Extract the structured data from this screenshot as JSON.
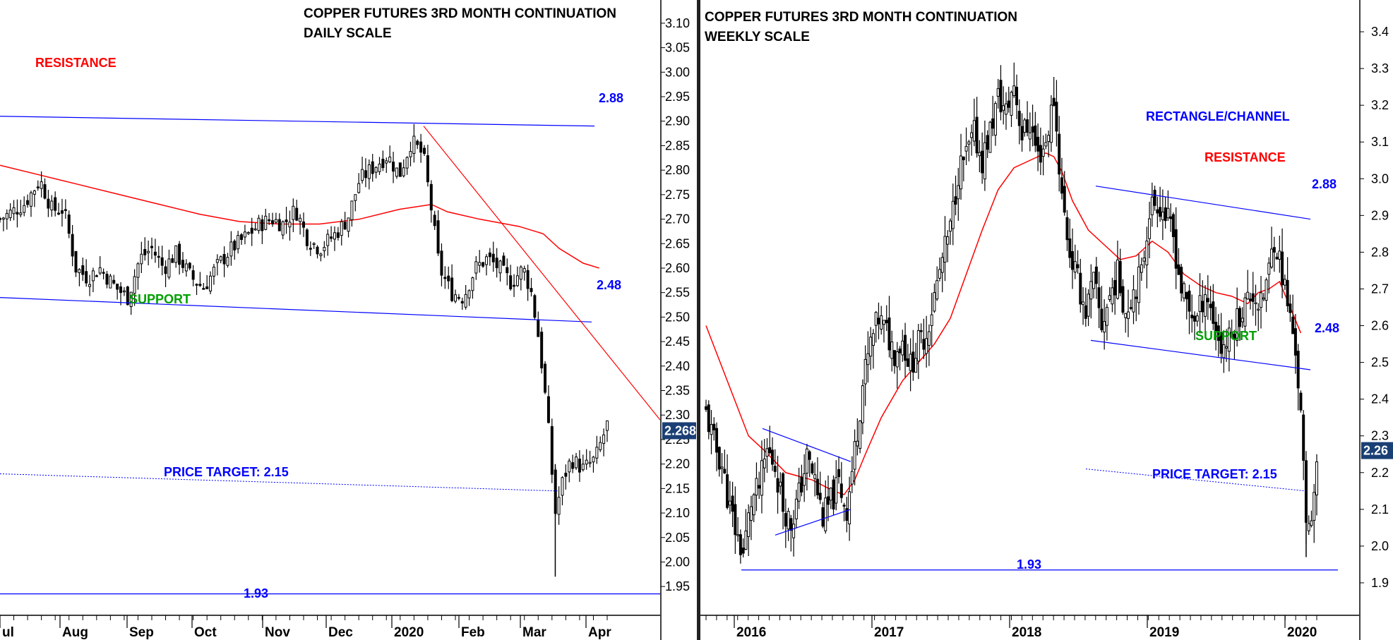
{
  "chart_data": [
    {
      "type": "candlestick",
      "title_line1": "COPPER FUTURES 3RD MONTH CONTINUATION",
      "title_line2": "DAILY SCALE",
      "x_tick_labels": [
        "ul",
        "Aug",
        "Sep",
        "Oct",
        "Nov",
        "Dec",
        "2020",
        "Feb",
        "Mar",
        "Apr"
      ],
      "y_tick_labels": [
        "3.10",
        "3.05",
        "3.00",
        "2.95",
        "2.90",
        "2.85",
        "2.80",
        "2.75",
        "2.70",
        "2.65",
        "2.60",
        "2.55",
        "2.50",
        "2.45",
        "2.40",
        "2.35",
        "2.30",
        "2.25",
        "2.20",
        "2.15",
        "2.10",
        "2.05",
        "2.00",
        "1.95"
      ],
      "ylim": [
        1.92,
        3.12
      ],
      "last_price_label": "2.268",
      "last_price": 2.268,
      "annotations": {
        "resistance_label": "RESISTANCE",
        "resistance_value": "2.88",
        "support_label": "SUPPORT",
        "support_value": "2.48",
        "target_label": "PRICE TARGET: 2.15",
        "low_value": "1.93"
      },
      "levels": {
        "resistance_start": 2.91,
        "resistance_end": 2.89,
        "support_start": 2.54,
        "support_end": 2.49,
        "target_start": 2.18,
        "target_end": 2.145,
        "low": 1.935
      },
      "downtrend_line": {
        "start": 2.89,
        "end": 2.29
      },
      "colors": {
        "resistance": "#ff0000",
        "support": "#00a000",
        "lines": "#0000ff",
        "moving_average": "#ff0000",
        "candles": "#000000"
      },
      "close_path": [
        [
          0,
          2.7
        ],
        [
          6,
          2.73
        ],
        [
          10,
          2.78
        ],
        [
          13,
          2.72
        ],
        [
          16,
          2.72
        ],
        [
          19,
          2.6
        ],
        [
          22,
          2.58
        ],
        [
          25,
          2.6
        ],
        [
          29,
          2.56
        ],
        [
          32,
          2.54
        ],
        [
          35,
          2.62
        ],
        [
          38,
          2.64
        ],
        [
          41,
          2.6
        ],
        [
          44,
          2.63
        ],
        [
          48,
          2.58
        ],
        [
          51,
          2.56
        ],
        [
          54,
          2.6
        ],
        [
          58,
          2.64
        ],
        [
          61,
          2.66
        ],
        [
          65,
          2.69
        ],
        [
          68,
          2.7
        ],
        [
          71,
          2.69
        ],
        [
          74,
          2.72
        ],
        [
          77,
          2.66
        ],
        [
          80,
          2.64
        ],
        [
          84,
          2.67
        ],
        [
          87,
          2.7
        ],
        [
          90,
          2.78
        ],
        [
          94,
          2.81
        ],
        [
          97,
          2.83
        ],
        [
          100,
          2.79
        ],
        [
          103,
          2.86
        ],
        [
          106,
          2.83
        ],
        [
          108,
          2.72
        ],
        [
          110,
          2.6
        ],
        [
          113,
          2.55
        ],
        [
          116,
          2.54
        ],
        [
          119,
          2.6
        ],
        [
          122,
          2.62
        ],
        [
          125,
          2.6
        ],
        [
          128,
          2.57
        ],
        [
          131,
          2.6
        ],
        [
          133,
          2.55
        ],
        [
          135,
          2.45
        ],
        [
          137,
          2.3
        ],
        [
          139,
          2.1
        ],
        [
          141,
          2.17
        ],
        [
          143,
          2.21
        ],
        [
          146,
          2.19
        ],
        [
          149,
          2.21
        ],
        [
          152,
          2.28
        ]
      ],
      "moving_average": [
        [
          0,
          2.81
        ],
        [
          10,
          2.79
        ],
        [
          20,
          2.77
        ],
        [
          30,
          2.75
        ],
        [
          40,
          2.73
        ],
        [
          50,
          2.71
        ],
        [
          60,
          2.695
        ],
        [
          70,
          2.69
        ],
        [
          80,
          2.69
        ],
        [
          90,
          2.7
        ],
        [
          100,
          2.72
        ],
        [
          108,
          2.73
        ],
        [
          112,
          2.715
        ],
        [
          120,
          2.7
        ],
        [
          130,
          2.685
        ],
        [
          136,
          2.67
        ],
        [
          140,
          2.64
        ],
        [
          146,
          2.61
        ],
        [
          150,
          2.6
        ]
      ]
    },
    {
      "type": "candlestick",
      "title_line1": "COPPER FUTURES 3RD MONTH CONTINUATION",
      "title_line2": "WEEKLY SCALE",
      "x_tick_labels": [
        "2016",
        "2017",
        "2018",
        "2019",
        "2020"
      ],
      "y_tick_labels": [
        "3.4",
        "3.3",
        "3.2",
        "3.1",
        "3.0",
        "2.9",
        "2.8",
        "2.7",
        "2.6",
        "2.5",
        "2.4",
        "2.3",
        "2.2",
        "2.1",
        "2.0",
        "1.9"
      ],
      "ylim": [
        1.85,
        3.45
      ],
      "last_price_label": "2.26",
      "last_price": 2.26,
      "annotations": {
        "pattern_label": "RECTANGLE/CHANNEL",
        "resistance_label": "RESISTANCE",
        "resistance_value": "2.88",
        "support_label": "SUPPORT",
        "support_value": "2.48",
        "target_label": "PRICE TARGET: 2.15",
        "low_value": "1.93"
      },
      "levels": {
        "resistance_start": 2.98,
        "resistance_end": 2.89,
        "support_start": 2.56,
        "support_end": 2.48,
        "target_start": 2.21,
        "target_end": 2.15,
        "low": 1.935
      },
      "triangle": {
        "upper_start": 2.32,
        "upper_end": 2.23,
        "lower_start": 2.03,
        "lower_end": 2.1
      },
      "colors": {
        "resistance": "#ff0000",
        "support": "#00a000",
        "lines": "#0000ff",
        "moving_average": "#ff0000",
        "candles": "#000000"
      },
      "close_path": [
        [
          0,
          2.36
        ],
        [
          3,
          2.28
        ],
        [
          6,
          2.22
        ],
        [
          9,
          2.1
        ],
        [
          12,
          2.02
        ],
        [
          14,
          1.98
        ],
        [
          17,
          2.12
        ],
        [
          20,
          2.16
        ],
        [
          23,
          2.26
        ],
        [
          26,
          2.22
        ],
        [
          29,
          2.11
        ],
        [
          32,
          2.06
        ],
        [
          35,
          2.14
        ],
        [
          38,
          2.24
        ],
        [
          41,
          2.18
        ],
        [
          44,
          2.08
        ],
        [
          47,
          2.12
        ],
        [
          50,
          2.17
        ],
        [
          53,
          2.1
        ],
        [
          56,
          2.26
        ],
        [
          59,
          2.44
        ],
        [
          62,
          2.55
        ],
        [
          65,
          2.62
        ],
        [
          68,
          2.58
        ],
        [
          71,
          2.53
        ],
        [
          74,
          2.56
        ],
        [
          77,
          2.49
        ],
        [
          80,
          2.55
        ],
        [
          83,
          2.58
        ],
        [
          86,
          2.68
        ],
        [
          89,
          2.78
        ],
        [
          92,
          2.86
        ],
        [
          95,
          3.02
        ],
        [
          98,
          3.06
        ],
        [
          101,
          3.12
        ],
        [
          104,
          3.05
        ],
        [
          107,
          3.13
        ],
        [
          110,
          3.22
        ],
        [
          113,
          3.18
        ],
        [
          116,
          3.26
        ],
        [
          119,
          3.12
        ],
        [
          122,
          3.15
        ],
        [
          125,
          3.06
        ],
        [
          128,
          3.1
        ],
        [
          131,
          3.22
        ],
        [
          134,
          2.95
        ],
        [
          137,
          2.8
        ],
        [
          140,
          2.72
        ],
        [
          143,
          2.64
        ],
        [
          146,
          2.72
        ],
        [
          149,
          2.6
        ],
        [
          152,
          2.68
        ],
        [
          155,
          2.74
        ],
        [
          158,
          2.64
        ],
        [
          161,
          2.7
        ],
        [
          164,
          2.74
        ],
        [
          167,
          2.92
        ],
        [
          170,
          2.94
        ],
        [
          173,
          2.9
        ],
        [
          176,
          2.84
        ],
        [
          179,
          2.7
        ],
        [
          182,
          2.64
        ],
        [
          185,
          2.62
        ],
        [
          188,
          2.7
        ],
        [
          191,
          2.62
        ],
        [
          194,
          2.54
        ],
        [
          197,
          2.56
        ],
        [
          200,
          2.62
        ],
        [
          203,
          2.66
        ],
        [
          206,
          2.69
        ],
        [
          209,
          2.65
        ],
        [
          212,
          2.75
        ],
        [
          214,
          2.84
        ],
        [
          216,
          2.78
        ],
        [
          218,
          2.7
        ],
        [
          220,
          2.62
        ],
        [
          222,
          2.54
        ],
        [
          224,
          2.35
        ],
        [
          226,
          2.05
        ],
        [
          228,
          2.1
        ],
        [
          230,
          2.2
        ]
      ],
      "moving_average": [
        [
          0,
          2.6
        ],
        [
          8,
          2.45
        ],
        [
          16,
          2.3
        ],
        [
          22,
          2.26
        ],
        [
          30,
          2.2
        ],
        [
          40,
          2.18
        ],
        [
          48,
          2.15
        ],
        [
          52,
          2.14
        ],
        [
          56,
          2.18
        ],
        [
          60,
          2.25
        ],
        [
          66,
          2.35
        ],
        [
          74,
          2.45
        ],
        [
          80,
          2.5
        ],
        [
          86,
          2.55
        ],
        [
          92,
          2.62
        ],
        [
          98,
          2.74
        ],
        [
          104,
          2.86
        ],
        [
          110,
          2.97
        ],
        [
          116,
          3.03
        ],
        [
          122,
          3.05
        ],
        [
          128,
          3.07
        ],
        [
          131,
          3.06
        ],
        [
          134,
          3.02
        ],
        [
          138,
          2.94
        ],
        [
          144,
          2.86
        ],
        [
          150,
          2.82
        ],
        [
          156,
          2.78
        ],
        [
          162,
          2.79
        ],
        [
          168,
          2.83
        ],
        [
          174,
          2.8
        ],
        [
          180,
          2.74
        ],
        [
          186,
          2.71
        ],
        [
          192,
          2.69
        ],
        [
          198,
          2.68
        ],
        [
          204,
          2.66
        ],
        [
          208,
          2.69
        ],
        [
          212,
          2.7
        ],
        [
          216,
          2.72
        ],
        [
          220,
          2.65
        ],
        [
          224,
          2.58
        ]
      ]
    }
  ]
}
